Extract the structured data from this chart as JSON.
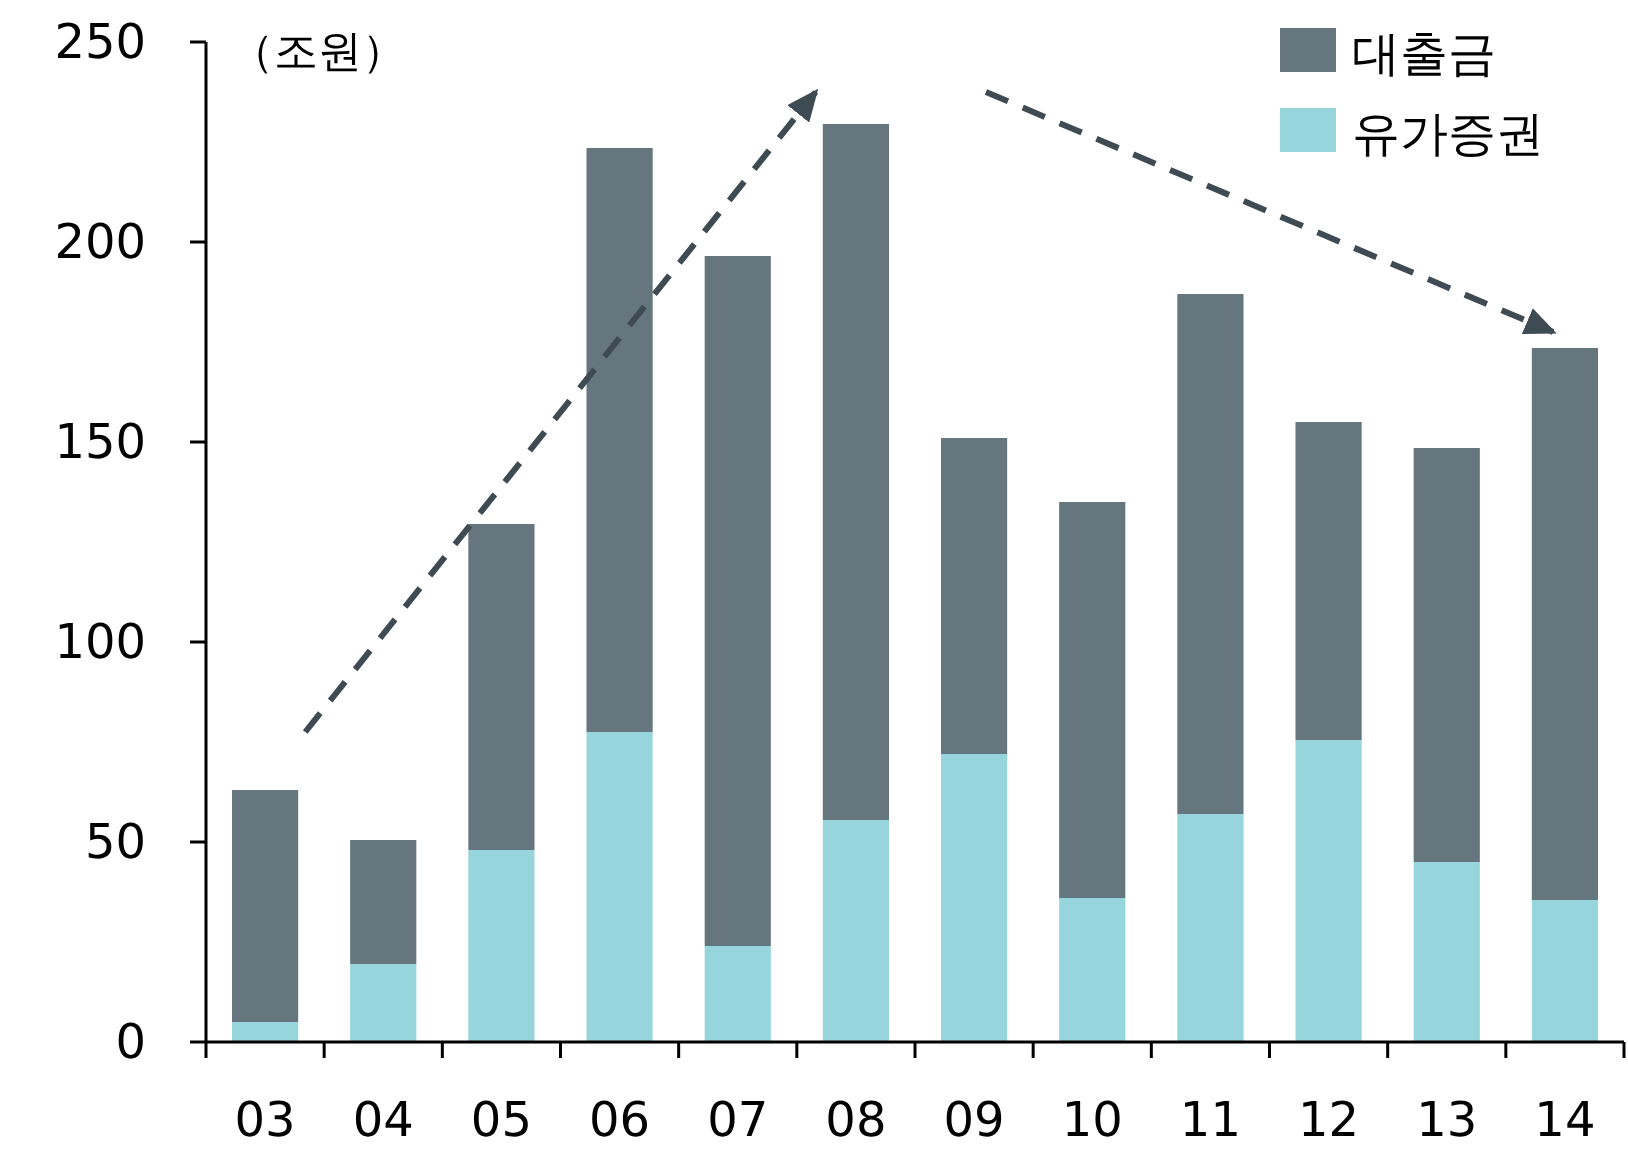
{
  "chart_data": {
    "type": "bar",
    "stacked": true,
    "ylabel": "（조원）",
    "categories": [
      "03",
      "04",
      "05",
      "06",
      "07",
      "08",
      "09",
      "10",
      "11",
      "12",
      "13",
      "14"
    ],
    "series": [
      {
        "name": "유가증권",
        "color": "#96d5db",
        "values": [
          5,
          19.5,
          48,
          77.5,
          24,
          55.5,
          72,
          36,
          57,
          75.5,
          45,
          35.5
        ]
      },
      {
        "name": "대출금",
        "color": "#66767f",
        "values": [
          58,
          31,
          81.5,
          146,
          172.5,
          174,
          79,
          99,
          130,
          79.5,
          103.5,
          138
        ]
      }
    ],
    "ylim": [
      0,
      250
    ],
    "yticks": [
      0,
      50,
      100,
      150,
      200,
      250
    ],
    "legend": "top right"
  }
}
